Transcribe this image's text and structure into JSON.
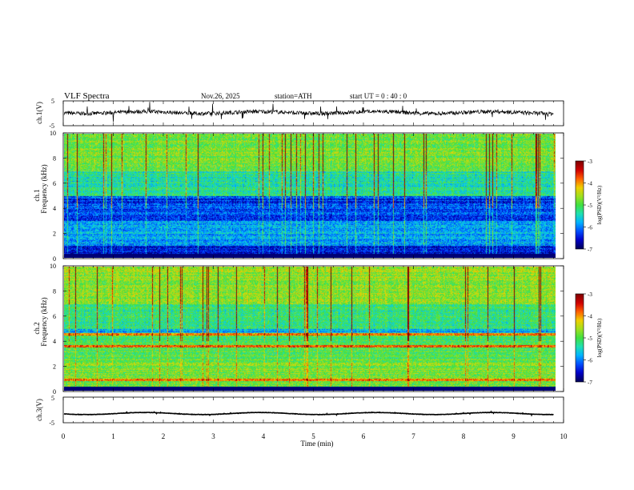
{
  "header": {
    "title": "VLF  Spectra",
    "date": "Nov.26, 2025",
    "station": "station=ATH",
    "start_ut": "start  UT  =   0 : 40 : 0"
  },
  "colors": {
    "trace": "#000000",
    "spectrogram_stops": [
      "#00005a",
      "#0000c8",
      "#0050ff",
      "#00b4ff",
      "#20e0b0",
      "#40e040",
      "#a0e020",
      "#f0d000",
      "#ff6000",
      "#d00000",
      "#800000"
    ]
  },
  "chart_data": [
    {
      "type": "line",
      "name": "ch1-waveform",
      "ylabel": "ch.1(V)",
      "ylim": [
        -5,
        5
      ],
      "y_ticks": [
        "5",
        "-5"
      ],
      "x_range": [
        0,
        10
      ],
      "baseline_v": 0.3,
      "noise_amplitude_v": 1.6
    },
    {
      "type": "heatmap",
      "name": "ch1-spectrogram",
      "ylabel_top": "ch.1",
      "ylabel": "Frequency  (kHz)",
      "ylim_khz": [
        0,
        10
      ],
      "y_ticks": [
        "0",
        "2",
        "4",
        "6",
        "8",
        "10"
      ],
      "x_range_min": [
        0,
        9.8
      ],
      "colorbar": {
        "label": "log(PSD)(V²/Hz)",
        "range": [
          -7,
          -3
        ],
        "ticks": [
          "-3",
          "-4",
          "-5",
          "-6",
          "-7"
        ]
      }
    },
    {
      "type": "heatmap",
      "name": "ch2-spectrogram",
      "ylabel_top": "ch.2",
      "ylabel": "Frequency  (kHz)",
      "ylim_khz": [
        0,
        10
      ],
      "y_ticks": [
        "0",
        "2",
        "4",
        "6",
        "8",
        "10"
      ],
      "x_range_min": [
        0,
        9.8
      ],
      "colorbar": {
        "label": "log(PSD)(V²/Hz)",
        "range": [
          -7,
          -3
        ],
        "ticks": [
          "-3",
          "-4",
          "-5",
          "-6",
          "-7"
        ]
      }
    },
    {
      "type": "line",
      "name": "ch3-waveform",
      "ylabel": "ch.3(V)",
      "ylim": [
        -5,
        5
      ],
      "y_ticks": [
        "5",
        "-5"
      ],
      "x_range": [
        0,
        10
      ],
      "baseline_v": -1.4,
      "noise_amplitude_v": 0.15
    }
  ],
  "x_axis": {
    "label": "Time  (min)",
    "range": [
      0,
      10
    ],
    "ticks": [
      "0",
      "1",
      "2",
      "3",
      "4",
      "5",
      "6",
      "7",
      "8",
      "9",
      "10"
    ]
  }
}
